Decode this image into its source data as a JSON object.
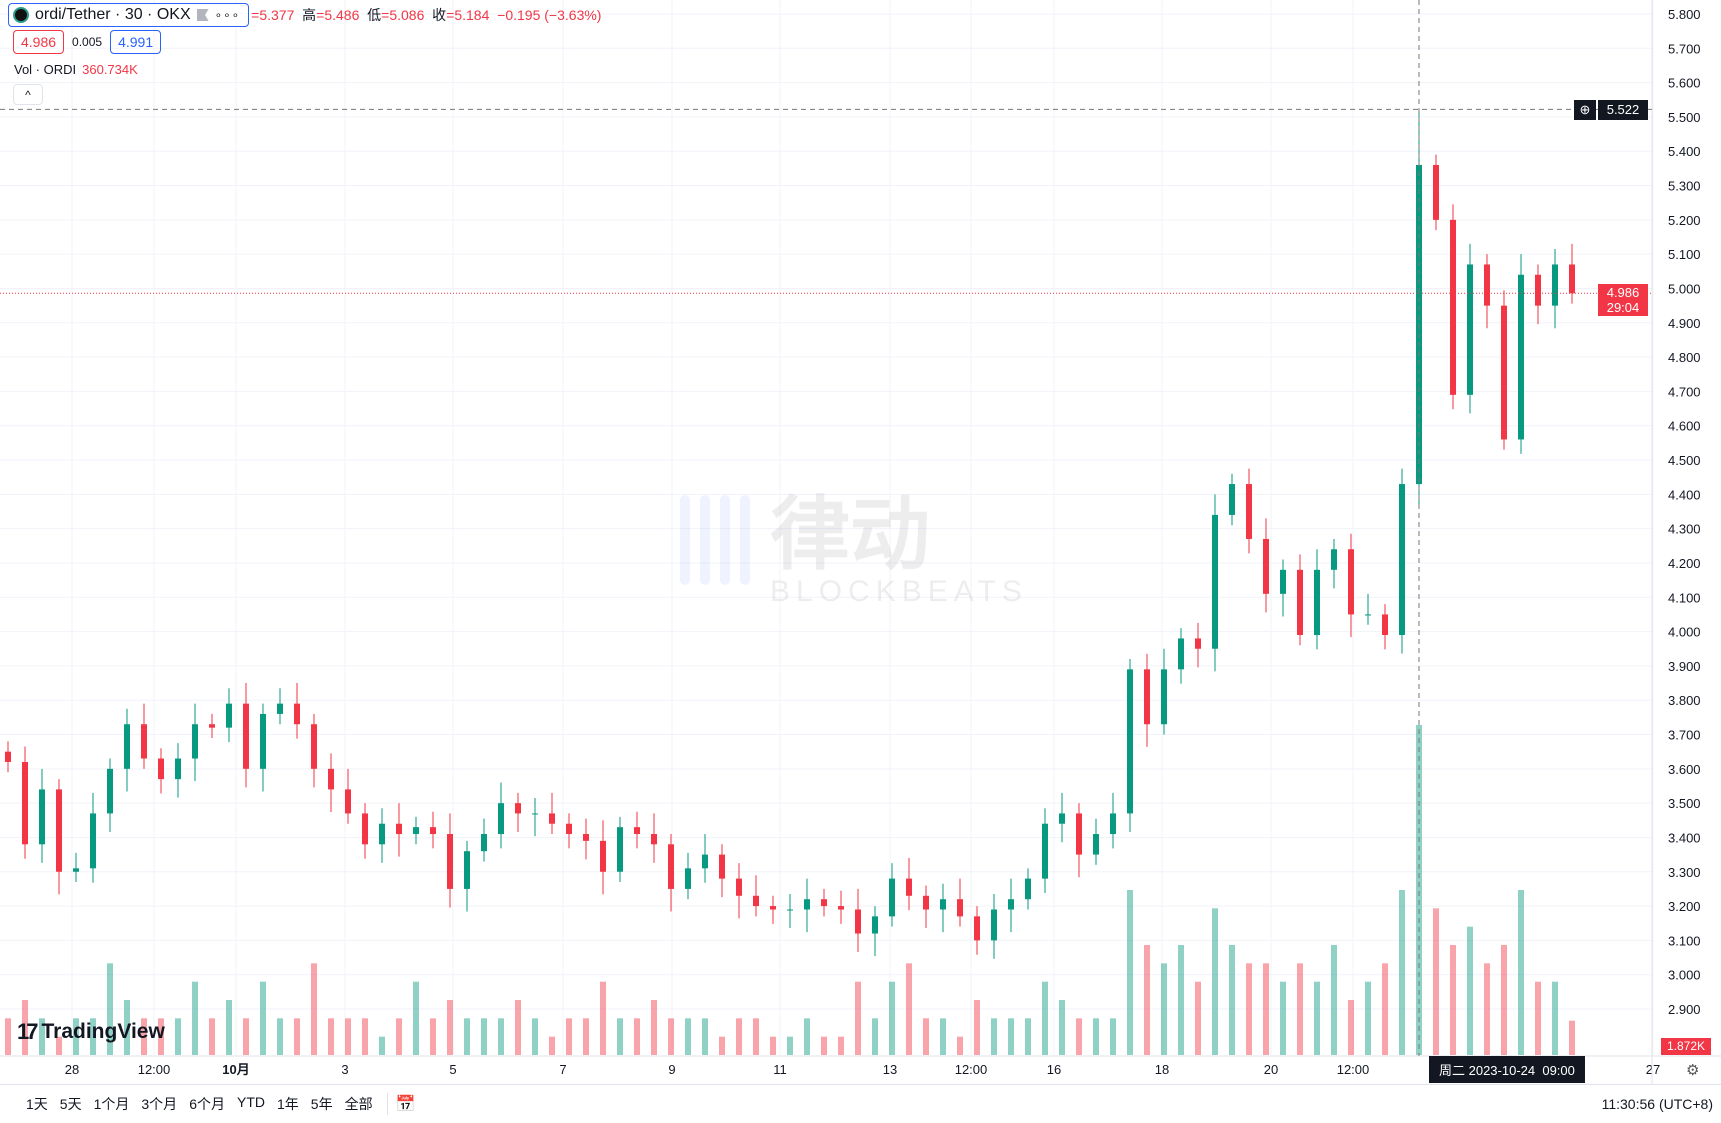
{
  "legend": {
    "symbol": "ordi/Tether · 30 · OKX",
    "more_icon": "ellipsis-icon",
    "open_label": "开",
    "open": "=5.377",
    "high_label": "高",
    "high": "=5.486",
    "low_label": "低",
    "low": "=5.086",
    "close_label": "收",
    "close": "=5.184",
    "change": "−0.195 (−3.63%)",
    "bid": "4.986",
    "spread": "0.005",
    "ask": "4.991",
    "volume_label": "Vol · ORDI",
    "volume_value": "360.734K"
  },
  "branding": {
    "tradingview": "TradingView",
    "watermark_cn": "律动",
    "watermark_en": "BLOCKBEATS"
  },
  "badges": {
    "crosshair_price": "5.522",
    "last_price": "4.986",
    "countdown": "29:04",
    "volume_last": "1.872K",
    "crosshair_time": "周二 2023-10-24  09:00"
  },
  "bottom": {
    "ranges": [
      "1天",
      "5天",
      "1个月",
      "3个月",
      "6个月",
      "YTD",
      "1年",
      "5年",
      "全部"
    ],
    "clock": "11:30:56 (UTC+8)"
  },
  "colors": {
    "up": "#089981",
    "down": "#f23645",
    "accent": "#2962ff"
  },
  "chart_data": {
    "type": "candlestick",
    "interval": "30",
    "ylim": [
      2.85,
      5.85
    ],
    "y_ticks": [
      "5.800",
      "5.700",
      "5.600",
      "5.500",
      "5.400",
      "5.300",
      "5.200",
      "5.100",
      "5.000",
      "4.900",
      "4.800",
      "4.700",
      "4.600",
      "4.500",
      "4.400",
      "4.300",
      "4.200",
      "4.100",
      "4.000",
      "3.900",
      "3.800",
      "3.700",
      "3.600",
      "3.500",
      "3.400",
      "3.300",
      "3.200",
      "3.100",
      "3.000",
      "2.900"
    ],
    "x_ticks": [
      "28",
      "12:00",
      "10月",
      "3",
      "5",
      "7",
      "9",
      "11",
      "13",
      "12:00",
      "16",
      "18",
      "20",
      "12:00",
      "27"
    ],
    "grid": true,
    "close": [
      3.62,
      3.38,
      3.54,
      3.3,
      3.31,
      3.47,
      3.6,
      3.73,
      3.63,
      3.57,
      3.63,
      3.73,
      3.72,
      3.79,
      3.6,
      3.76,
      3.79,
      3.73,
      3.6,
      3.54,
      3.47,
      3.38,
      3.44,
      3.41,
      3.43,
      3.41,
      3.25,
      3.36,
      3.41,
      3.5,
      3.47,
      3.47,
      3.44,
      3.41,
      3.39,
      3.3,
      3.43,
      3.41,
      3.38,
      3.25,
      3.31,
      3.35,
      3.28,
      3.23,
      3.2,
      3.19,
      3.19,
      3.22,
      3.2,
      3.19,
      3.12,
      3.17,
      3.28,
      3.23,
      3.19,
      3.22,
      3.17,
      3.1,
      3.19,
      3.22,
      3.28,
      3.44,
      3.47,
      3.35,
      3.41,
      3.47,
      3.89,
      3.73,
      3.89,
      3.98,
      3.95,
      4.34,
      4.43,
      4.27,
      4.11,
      4.18,
      3.99,
      4.18,
      4.24,
      4.05,
      4.05,
      3.99,
      4.43,
      5.36,
      5.2,
      4.69,
      5.07,
      4.95,
      4.56,
      5.04,
      4.95,
      5.07,
      4.986
    ],
    "volume_k": [
      2,
      3,
      2,
      1,
      2,
      2,
      5,
      3,
      2,
      2,
      2,
      4,
      2,
      3,
      2,
      4,
      2,
      2,
      5,
      2,
      2,
      2,
      1,
      2,
      4,
      2,
      3,
      2,
      2,
      2,
      3,
      2,
      1,
      2,
      2,
      4,
      2,
      2,
      3,
      2,
      2,
      2,
      1,
      2,
      2,
      1,
      1,
      2,
      1,
      1,
      4,
      2,
      4,
      5,
      2,
      2,
      1,
      3,
      2,
      2,
      2,
      4,
      3,
      2,
      2,
      2,
      9,
      6,
      5,
      6,
      4,
      8,
      6,
      5,
      5,
      4,
      5,
      4,
      6,
      3,
      4,
      5,
      9,
      18,
      8,
      6,
      7,
      5,
      6,
      9,
      4,
      4,
      1.872
    ],
    "last_price": 4.986,
    "crosshair_price": 5.522
  }
}
